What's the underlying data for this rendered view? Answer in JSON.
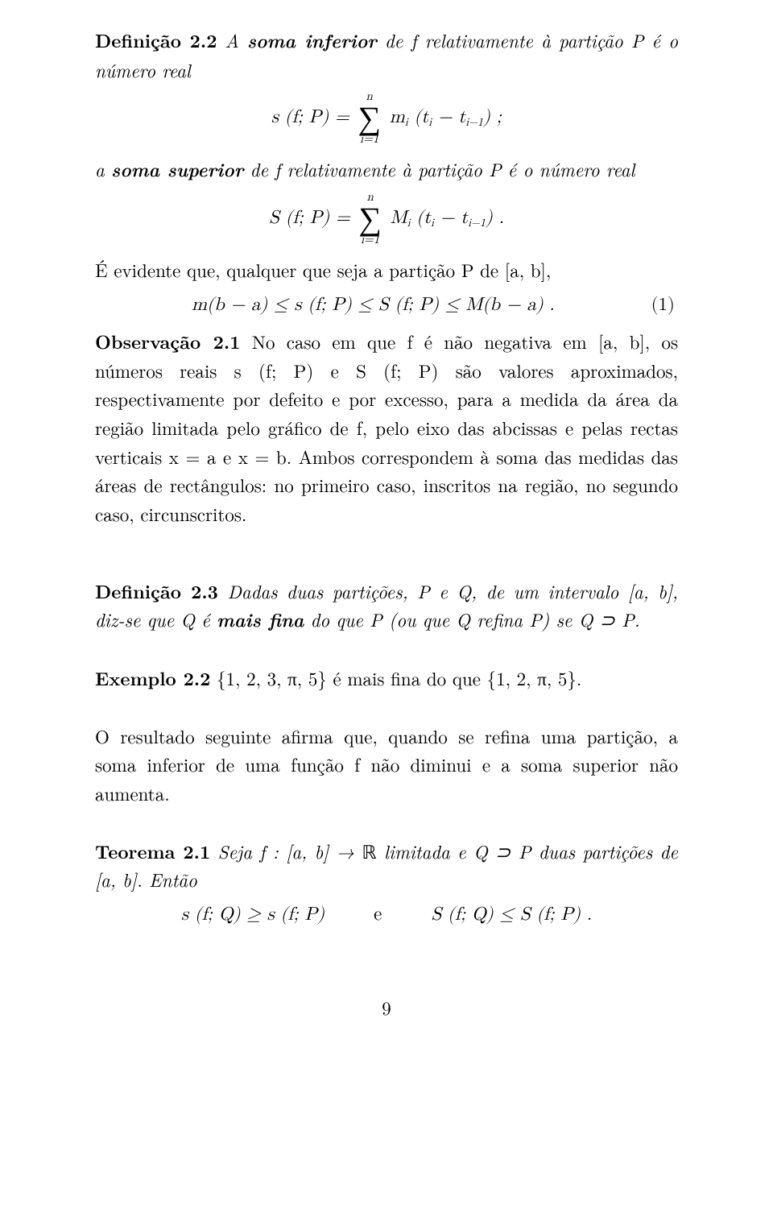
{
  "def22_head": "Definição 2.2",
  "def22_a": " A ",
  "def22_b": "soma inferior",
  "def22_c": " de f relativamente à partição P é o número real",
  "eq1_lhs": "s (f; P) = ",
  "eq1_rhs": " m",
  "eq1_sub_i": "i",
  "eq1_paren": " (t",
  "eq1_minus": " − t",
  "eq1_im1": "i−1",
  "eq1_close": ")  ;",
  "sum_top": "n",
  "sum_bot": "i=1",
  "def22_d": "a ",
  "def22_e": "soma superior",
  "def22_f": " de f relativamente à partição P é o número real",
  "eq2_lhs": "S (f; P) = ",
  "eq2_rhs": " M",
  "eq2_close": ") .",
  "evidente": "É evidente que, qualquer que seja a partição P de [a, b],",
  "eq3": "m(b − a) ≤ s (f; P) ≤ S (f; P) ≤ M(b − a) .",
  "eq3_num": "(1)",
  "obs21_head": "Observação 2.1",
  "obs21_body": " No caso em que f é não negativa em [a, b], os números reais s (f; P) e S (f; P) são valores aproximados, respectivamente por defeito e por excesso, para a medida da área da região limitada pelo gráfico de f, pelo eixo das abcissas e pelas rectas verticais x = a e x = b. Ambos correspondem à soma das medidas das áreas de rectângulos: no primeiro caso, inscritos na região, no segundo caso, circunscritos.",
  "def23_head": "Definição 2.3",
  "def23_a": " Dadas duas partições, P e Q, de um intervalo [a, b], diz-se que Q é ",
  "def23_b": "mais fina",
  "def23_c": " do que P (ou que Q refina P) se Q ⊃ P.",
  "ex22_head": "Exemplo 2.2",
  "ex22_body": " {1, 2, 3, π, 5} é mais fina do que {1, 2, π, 5}.",
  "refina": "O resultado seguinte afirma que, quando se refina uma partição, a soma inferior de uma função f não diminui e a soma superior não aumenta.",
  "teo21_head": "Teorema 2.1",
  "teo21_a": " Seja f : [a, b] → ",
  "teo21_R": "ℝ",
  "teo21_b": " limitada e Q ⊃ P duas partições de [a, b]. Então",
  "eq4_left": "s (f; Q) ≥ s (f; P)",
  "eq4_mid": "e",
  "eq4_right": "S (f; Q) ≤ S (f; P) .",
  "pagenum": "9"
}
